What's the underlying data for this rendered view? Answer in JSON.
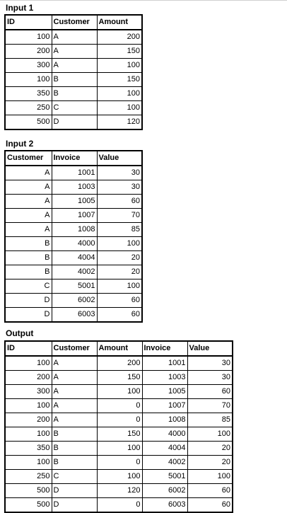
{
  "input1": {
    "title": "Input 1",
    "columns": [
      "ID",
      "Customer",
      "Amount"
    ],
    "rows": [
      [
        "100",
        "A",
        "200"
      ],
      [
        "200",
        "A",
        "150"
      ],
      [
        "300",
        "A",
        "100"
      ],
      [
        "100",
        "B",
        "150"
      ],
      [
        "350",
        "B",
        "100"
      ],
      [
        "250",
        "C",
        "100"
      ],
      [
        "500",
        "D",
        "120"
      ]
    ]
  },
  "input2": {
    "title": "Input 2",
    "columns": [
      "Customer",
      "Invoice",
      "Value"
    ],
    "rows": [
      [
        "A",
        "1001",
        "30"
      ],
      [
        "A",
        "1003",
        "30"
      ],
      [
        "A",
        "1005",
        "60"
      ],
      [
        "A",
        "1007",
        "70"
      ],
      [
        "A",
        "1008",
        "85"
      ],
      [
        "B",
        "4000",
        "100"
      ],
      [
        "B",
        "4004",
        "20"
      ],
      [
        "B",
        "4002",
        "20"
      ],
      [
        "C",
        "5001",
        "100"
      ],
      [
        "D",
        "6002",
        "60"
      ],
      [
        "D",
        "6003",
        "60"
      ]
    ]
  },
  "output": {
    "title": "Output",
    "columns": [
      "ID",
      "Customer",
      "Amount",
      "Invoice",
      "Value"
    ],
    "rows": [
      [
        "100",
        "A",
        "200",
        "1001",
        "30"
      ],
      [
        "200",
        "A",
        "150",
        "1003",
        "30"
      ],
      [
        "300",
        "A",
        "100",
        "1005",
        "60"
      ],
      [
        "100",
        "A",
        "0",
        "1007",
        "70"
      ],
      [
        "200",
        "A",
        "0",
        "1008",
        "85"
      ],
      [
        "100",
        "B",
        "150",
        "4000",
        "100"
      ],
      [
        "350",
        "B",
        "100",
        "4004",
        "20"
      ],
      [
        "100",
        "B",
        "0",
        "4002",
        "20"
      ],
      [
        "250",
        "C",
        "100",
        "5001",
        "100"
      ],
      [
        "500",
        "D",
        "120",
        "6002",
        "60"
      ],
      [
        "500",
        "D",
        "0",
        "6003",
        "60"
      ]
    ]
  }
}
